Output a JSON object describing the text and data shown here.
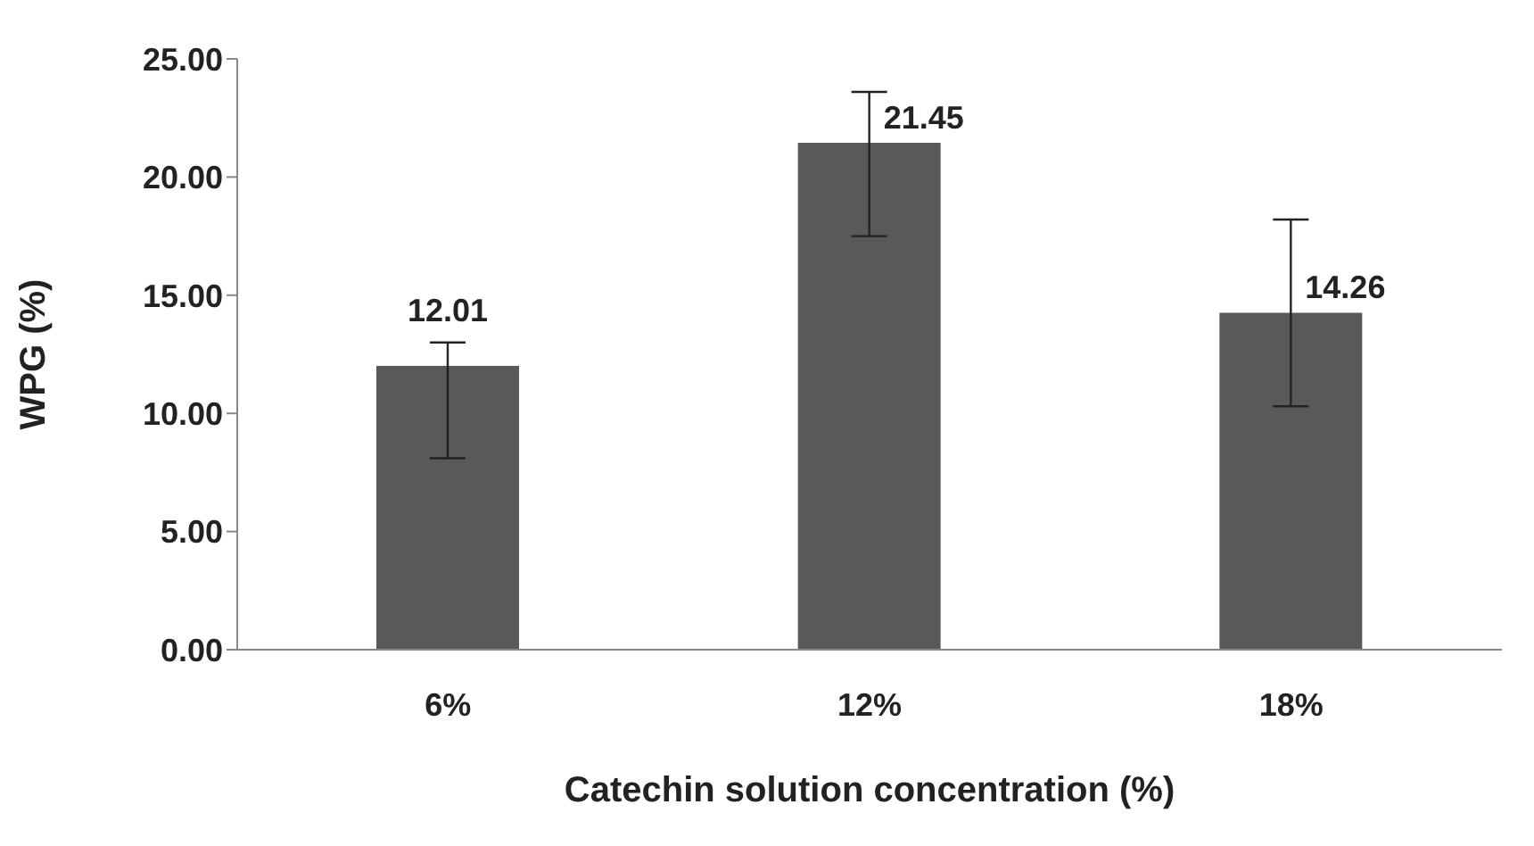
{
  "chart_data": {
    "type": "bar",
    "xlabel": "Catechin solution concentration (%)",
    "ylabel": "WPG (%)",
    "categories": [
      "6%",
      "12%",
      "18%"
    ],
    "values": [
      12.01,
      21.45,
      14.26
    ],
    "errors": [
      [
        8.1,
        13.0
      ],
      [
        17.5,
        23.6
      ],
      [
        10.3,
        18.2
      ]
    ],
    "color": "#595959",
    "data_labels": true,
    "grid": false,
    "legend": false,
    "ylim": [
      0,
      25
    ],
    "yticks": [
      {
        "value": 0,
        "label": "0.00"
      },
      {
        "value": 5,
        "label": "5.00"
      },
      {
        "value": 10,
        "label": "10.00"
      },
      {
        "value": 15,
        "label": "15.00"
      },
      {
        "value": 20,
        "label": "20.00"
      },
      {
        "value": 25,
        "label": "25.00"
      }
    ]
  }
}
